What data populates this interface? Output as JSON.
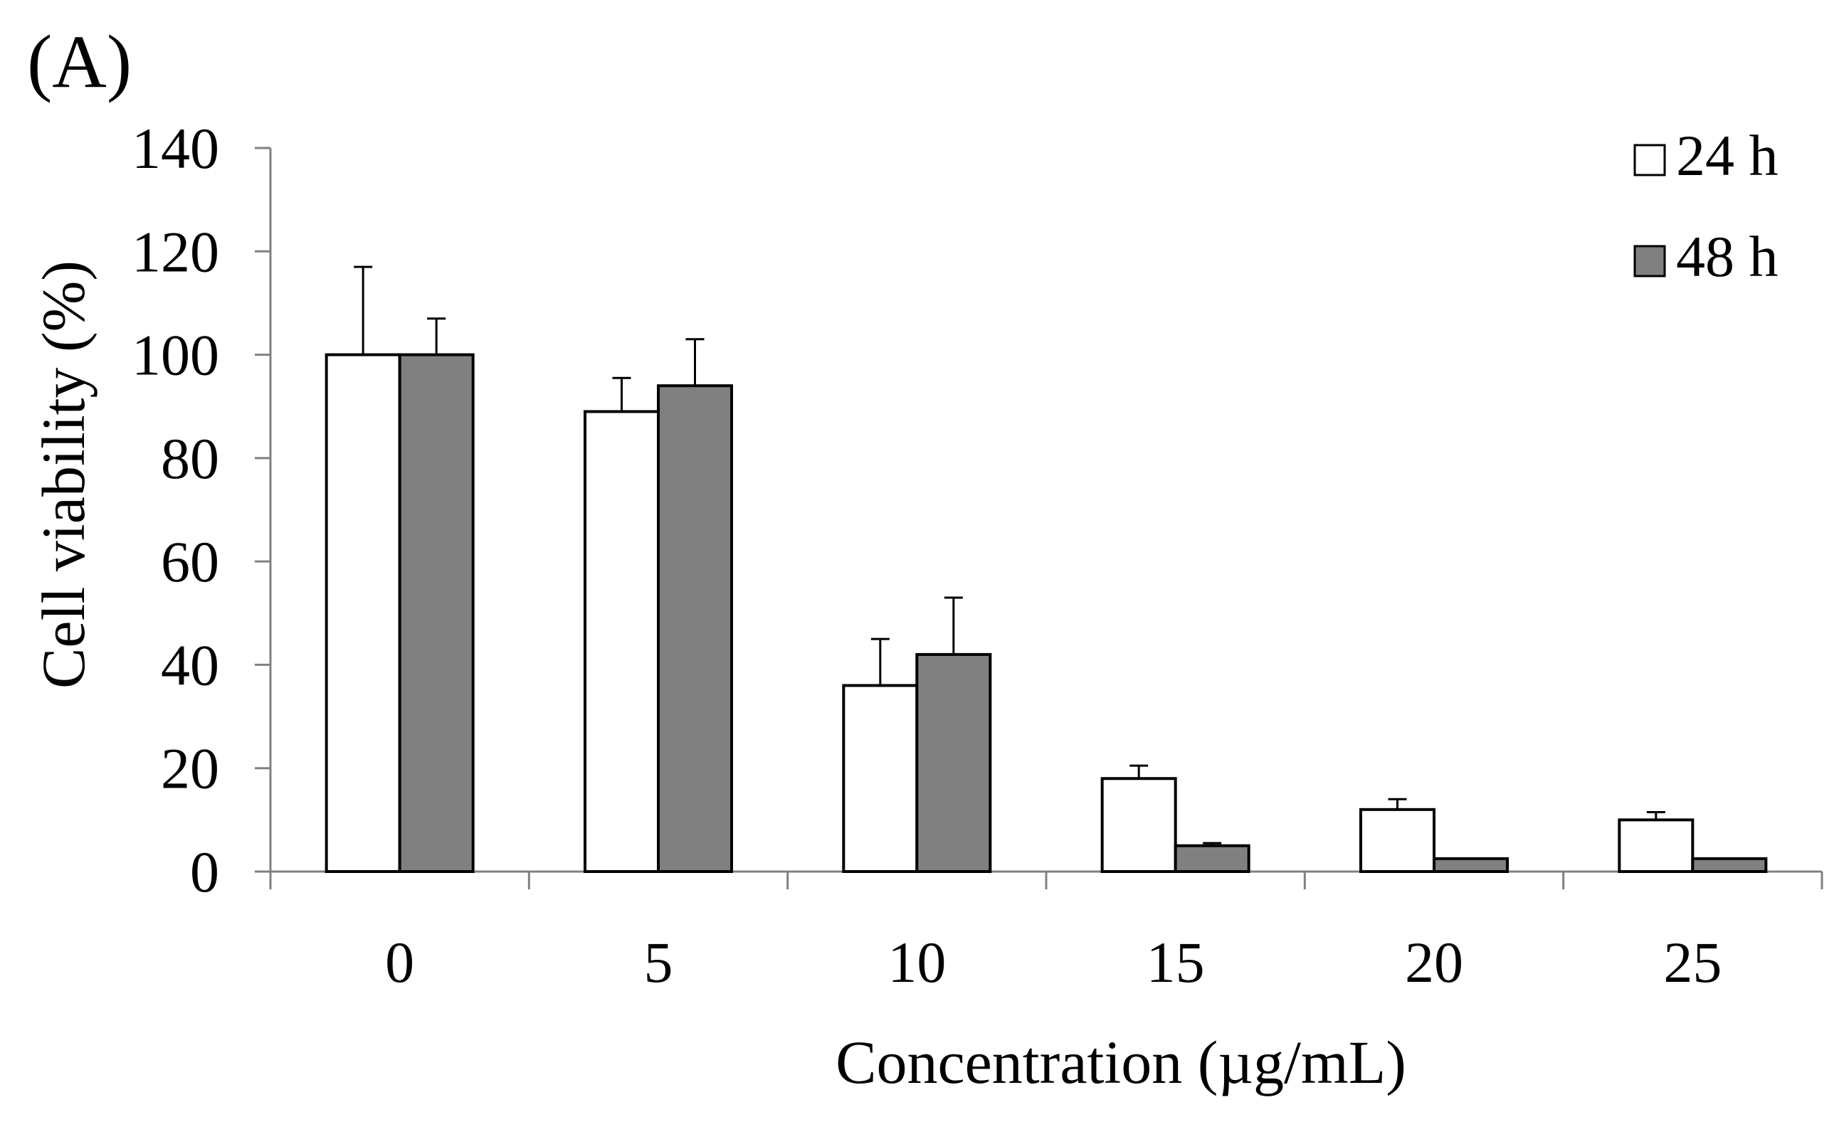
{
  "chart_data": {
    "type": "bar",
    "panel_label": "(A)",
    "title": "",
    "xlabel": "Concentration (µg/mL)",
    "ylabel": "Cell viability (%)",
    "categories": [
      "0",
      "5",
      "10",
      "15",
      "20",
      "25"
    ],
    "ylim": [
      0,
      140
    ],
    "yticks": [
      0,
      20,
      40,
      60,
      80,
      100,
      120,
      140
    ],
    "grid": false,
    "legend_position": "top-right",
    "series": [
      {
        "name": "24 h",
        "color": "#ffffff",
        "values": [
          100,
          89,
          36,
          18,
          12,
          10
        ],
        "errors": [
          17,
          6.5,
          9,
          2.5,
          2,
          1.5
        ]
      },
      {
        "name": "48 h",
        "color": "#808080",
        "values": [
          100,
          94,
          42,
          5,
          2.5,
          2.5
        ],
        "errors": [
          7,
          9,
          11,
          0.5,
          0,
          0
        ]
      }
    ]
  }
}
